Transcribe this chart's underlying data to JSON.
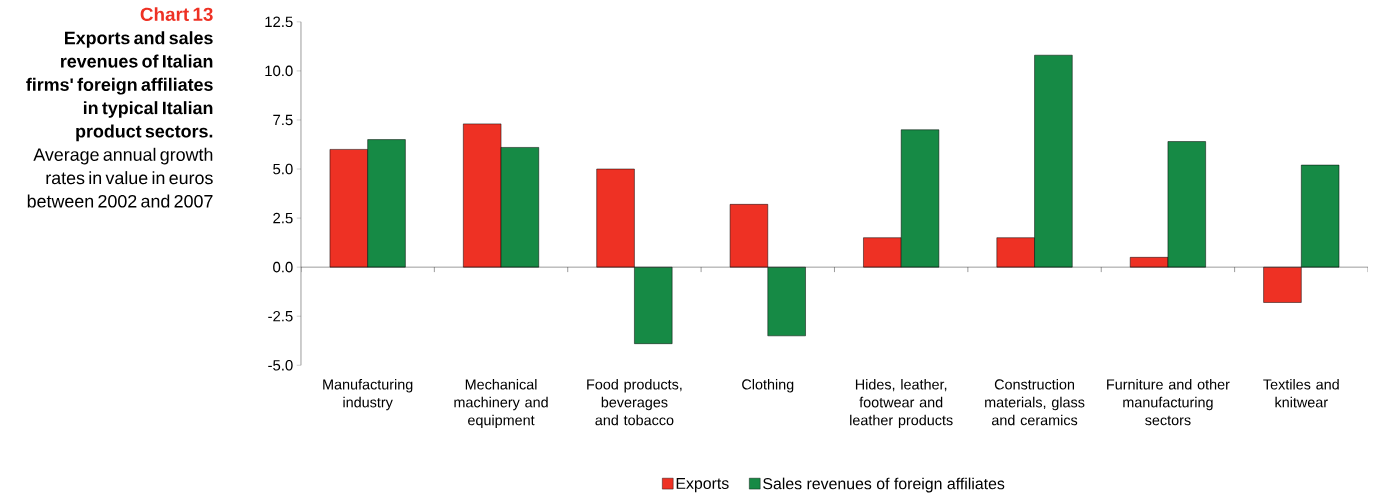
{
  "chart_data": {
    "type": "bar",
    "title": "Chart 13",
    "subtitle": "**Exports and sales revenues of Italian firms' foreign affiliates in typical Italian product sectors.** Average annual growth rates in value in euros between 2002 and 2007",
    "categories": [
      "Manufacturing industry",
      "Mechanical machinery and equipment",
      "Food products, beverages and tobacco",
      "Clothing",
      "Hides, leather, footwear and leather products",
      "Construction materials, glass and ceramics",
      "Furniture and other manufacturing sectors",
      "Textiles and knitwear"
    ],
    "series": [
      {
        "name": "Exports",
        "color": "#ee3124",
        "values": [
          6.0,
          7.3,
          5.0,
          3.2,
          1.5,
          1.5,
          0.5,
          -1.8
        ]
      },
      {
        "name": "Sales revenues of foreign affiliates",
        "color": "#168a45",
        "values": [
          6.5,
          6.1,
          -3.9,
          -3.5,
          7.0,
          10.8,
          6.4,
          5.2
        ]
      }
    ],
    "ylim": [
      -5,
      12.5
    ],
    "yticks": [
      {
        "value": -5,
        "label": "-5.0"
      },
      {
        "value": -2.5,
        "label": "-2.5"
      },
      {
        "value": 0,
        "label": "0.0"
      },
      {
        "value": 2.5,
        "label": "2.5"
      },
      {
        "value": 5,
        "label": "5.0"
      },
      {
        "value": 7.5,
        "label": "7.5"
      },
      {
        "value": 10,
        "label": "10.0"
      },
      {
        "value": 12.5,
        "label": "12.5"
      }
    ],
    "legend": "bottom"
  }
}
